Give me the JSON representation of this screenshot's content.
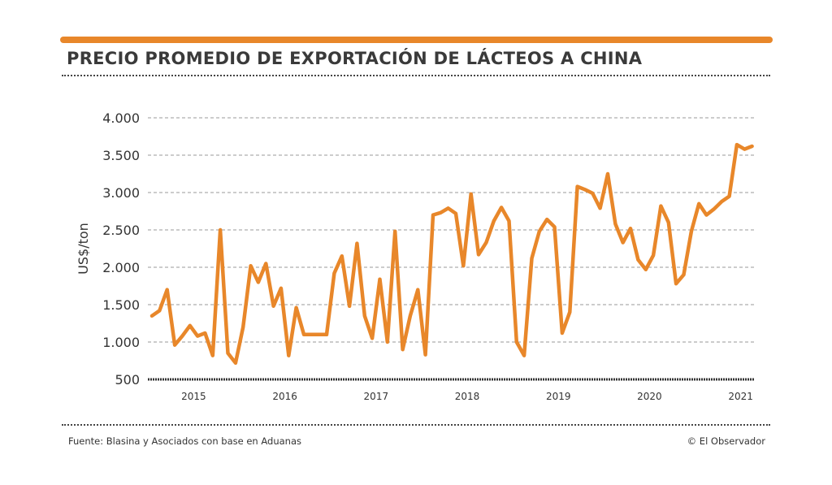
{
  "header": {
    "title": "PRECIO PROMEDIO DE EXPORTACIÓN DE LÁCTEOS A CHINA"
  },
  "footer": {
    "source": "Fuente: Blasina y Asociados con base en Aduanas",
    "credit": "© El Observador"
  },
  "colors": {
    "line": "#e8872a",
    "grid": "#9a9a9a",
    "text": "#333333"
  },
  "chart_data": {
    "type": "line",
    "title": "PRECIO PROMEDIO DE EXPORTACIÓN DE LÁCTEOS A CHINA",
    "xlabel": "",
    "ylabel": "US$/ton",
    "ylim": [
      500,
      4000
    ],
    "yticks": [
      500,
      1000,
      1500,
      2000,
      2500,
      3000,
      3500,
      4000
    ],
    "ytick_labels": [
      "500",
      "1.000",
      "1.500",
      "2.000",
      "2.500",
      "3.000",
      "3.500",
      "4.000"
    ],
    "xtick_labels": [
      "2015",
      "2016",
      "2017",
      "2018",
      "2019",
      "2020",
      "2021"
    ],
    "x_start": "2015-01",
    "x_interval": "month",
    "grid": true,
    "series": [
      {
        "name": "US$/ton",
        "values": [
          1350,
          1420,
          1700,
          960,
          1080,
          1220,
          1080,
          1120,
          820,
          2500,
          850,
          720,
          1200,
          2020,
          1800,
          2050,
          1480,
          1720,
          820,
          1460,
          1100,
          1100,
          1100,
          1100,
          1920,
          2150,
          1480,
          2320,
          1350,
          1050,
          1840,
          1000,
          2480,
          900,
          1350,
          1700,
          830,
          2700,
          2730,
          2790,
          2720,
          2020,
          2980,
          2170,
          2330,
          2620,
          2800,
          2620,
          1000,
          820,
          2120,
          2480,
          2640,
          2540,
          1120,
          1400,
          3080,
          3040,
          2990,
          2790,
          3250,
          2580,
          2330,
          2520,
          2100,
          1970,
          2160,
          2820,
          2600,
          1780,
          1900,
          2480,
          2850,
          2700,
          2780,
          2880,
          2950,
          3640,
          3580,
          3620
        ]
      }
    ]
  }
}
